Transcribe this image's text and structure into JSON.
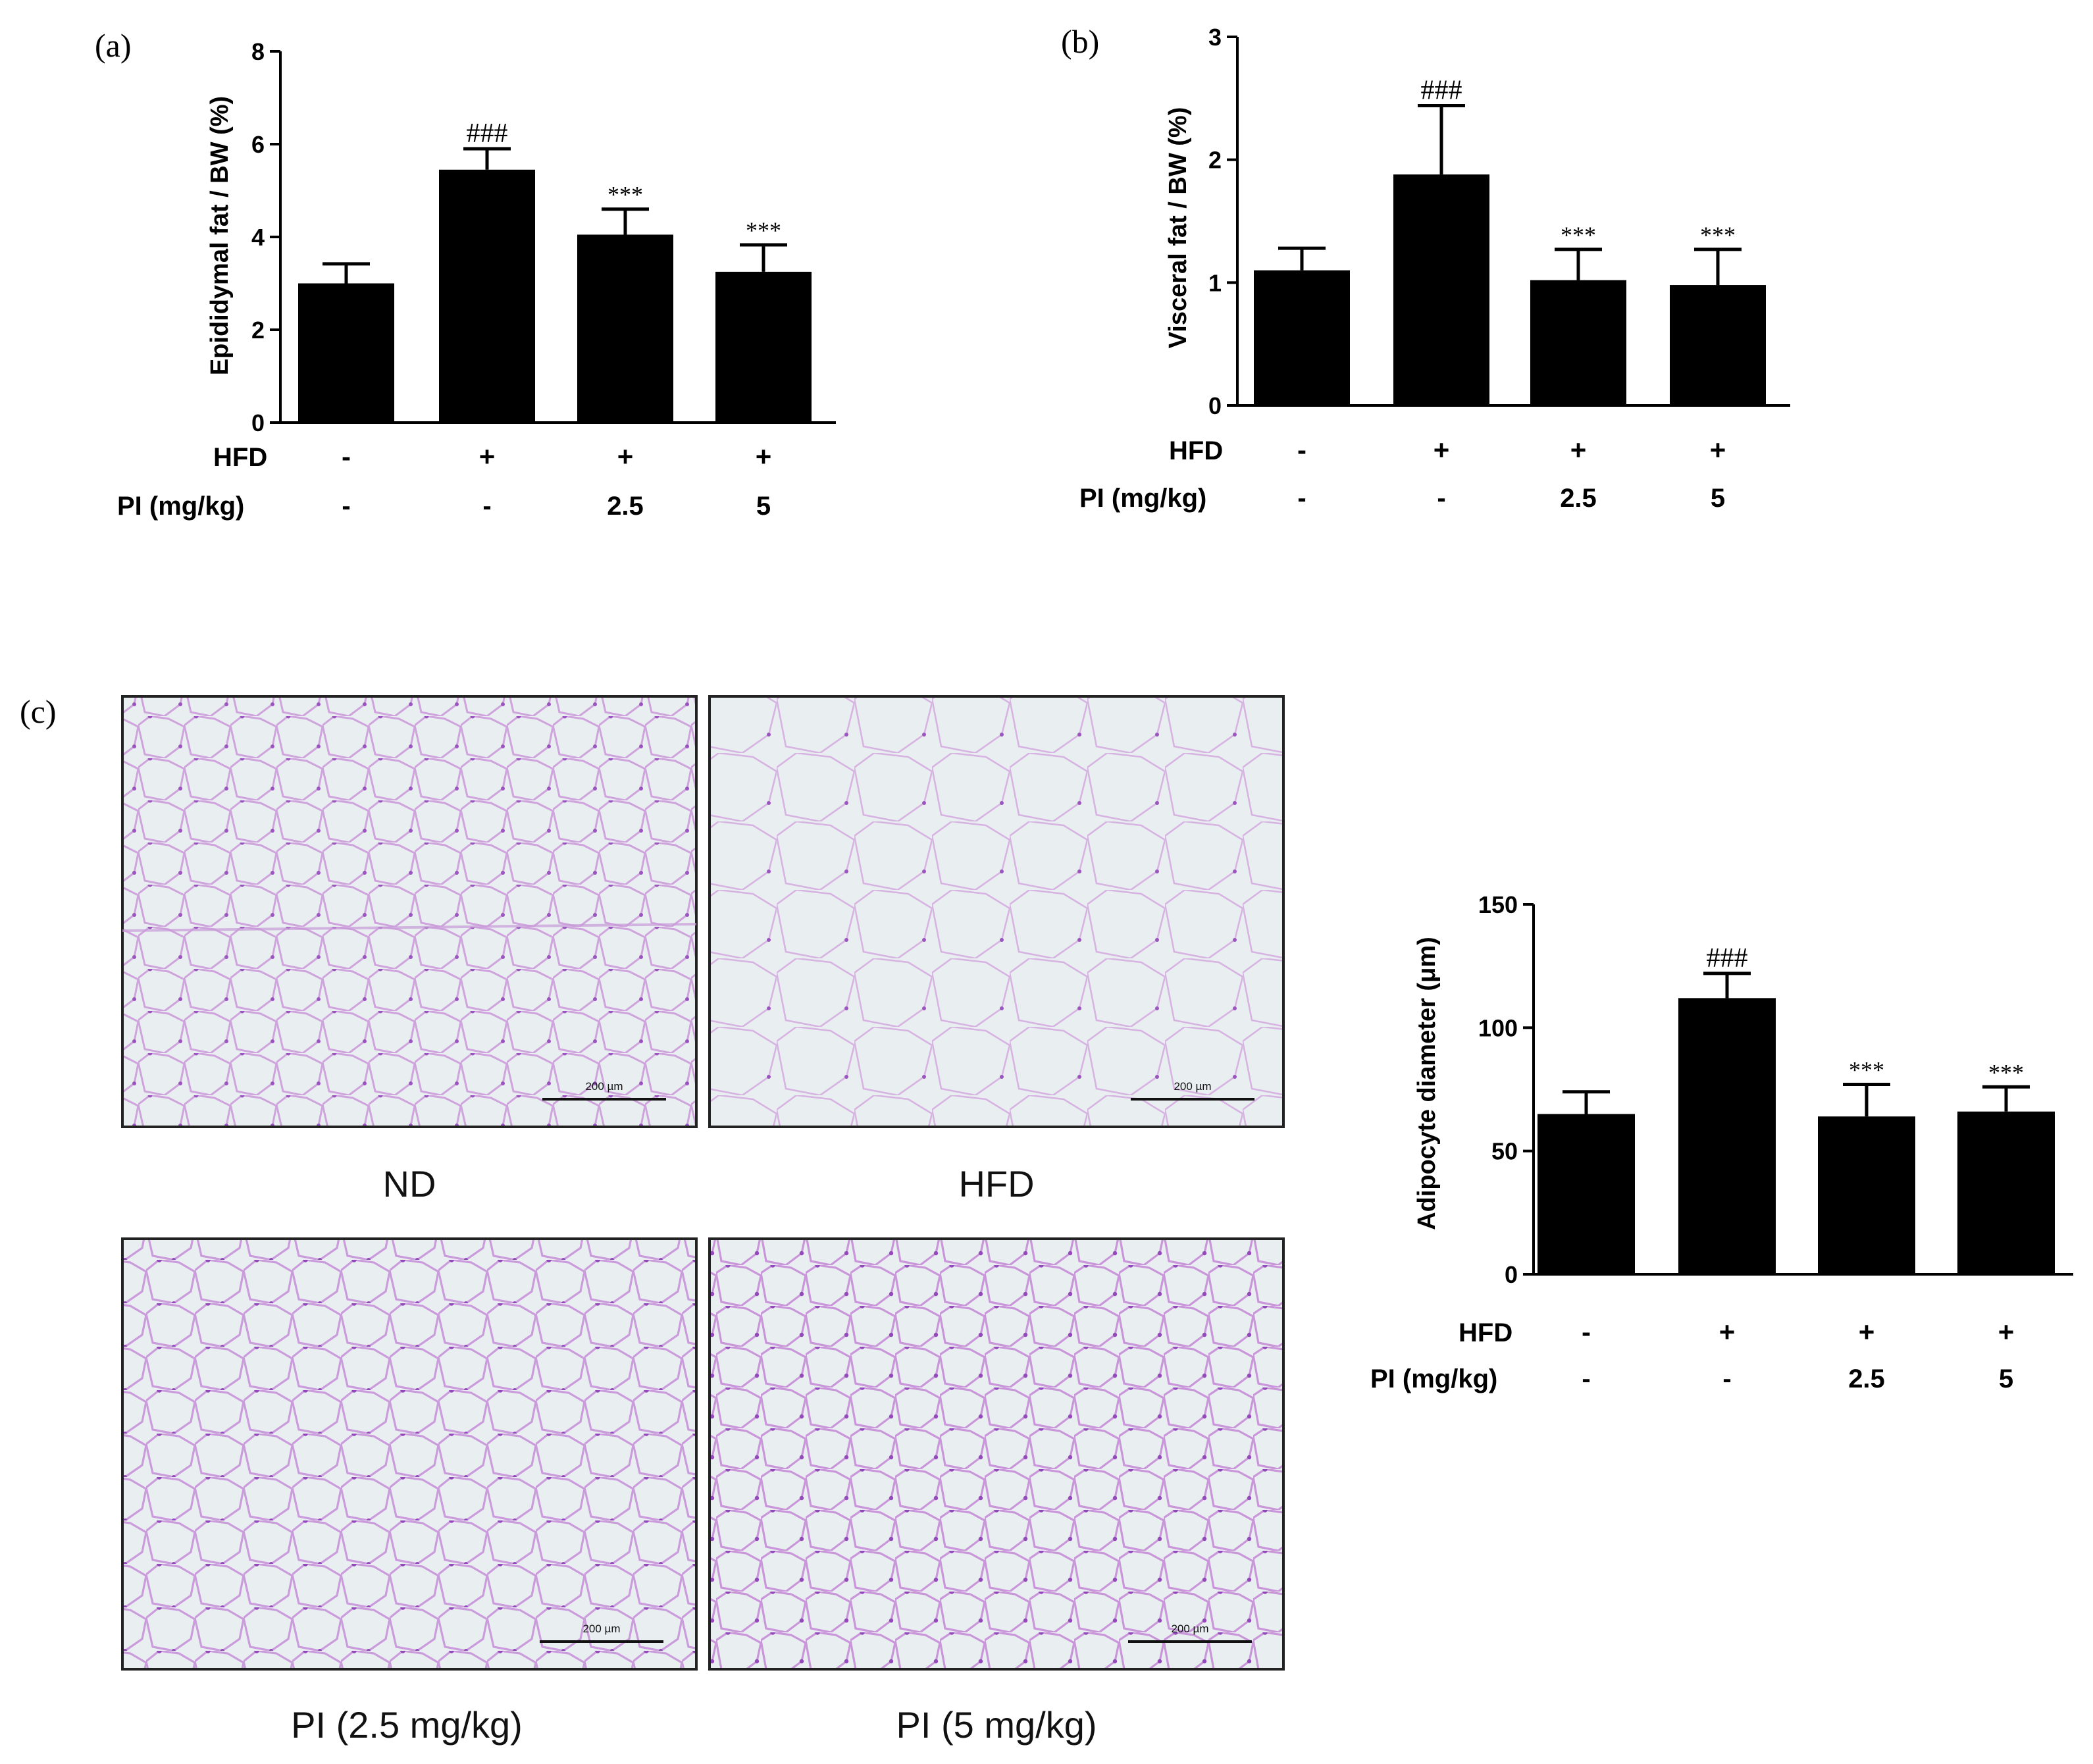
{
  "figure": {
    "panels": {
      "a": "(a)",
      "b": "(b)",
      "c": "(c)"
    },
    "row_labels": {
      "hfd": "HFD",
      "pi": "PI (mg/kg)"
    },
    "micrographs": [
      {
        "caption": "ND",
        "scale_label": "200 µm"
      },
      {
        "caption": "HFD",
        "scale_label": "200 µm"
      },
      {
        "caption": "PI (2.5 mg/kg)",
        "scale_label": "200 µm"
      },
      {
        "caption": "PI (5 mg/kg)",
        "scale_label": "200 µm"
      }
    ],
    "colors": {
      "bar": "#000000",
      "tissue_bg": "#e6ecef",
      "cell_wall": "#c89ad8",
      "nuclei": "#8a3fb0"
    }
  },
  "chart_data": [
    {
      "type": "bar",
      "panel": "(a)",
      "ylabel": "Epididymal fat / BW (%)",
      "ylim": [
        0,
        8
      ],
      "yticks": [
        "0",
        "2",
        "4",
        "6",
        "8"
      ],
      "categories": [
        "1",
        "2",
        "3",
        "4"
      ],
      "values": [
        3.0,
        5.45,
        4.05,
        3.25
      ],
      "errors": [
        0.42,
        0.45,
        0.55,
        0.58
      ],
      "annotations": [
        "",
        "###",
        "***",
        "***"
      ],
      "hfd": [
        "-",
        "+",
        "+",
        "+"
      ],
      "pi": [
        "-",
        "-",
        "2.5",
        "5"
      ]
    },
    {
      "type": "bar",
      "panel": "(b)",
      "ylabel": "Visceral fat / BW (%)",
      "ylim": [
        0,
        3
      ],
      "yticks": [
        "0",
        "1",
        "2",
        "3"
      ],
      "categories": [
        "1",
        "2",
        "3",
        "4"
      ],
      "values": [
        1.1,
        1.88,
        1.02,
        0.98
      ],
      "errors": [
        0.18,
        0.56,
        0.25,
        0.29
      ],
      "annotations": [
        "",
        "###",
        "***",
        "***"
      ],
      "hfd": [
        "-",
        "+",
        "+",
        "+"
      ],
      "pi": [
        "-",
        "-",
        "2.5",
        "5"
      ]
    },
    {
      "type": "bar",
      "panel": "(c)",
      "ylabel": "Adipocyte diameter (μm)",
      "ylim": [
        0,
        150
      ],
      "yticks": [
        "0",
        "50",
        "100",
        "150"
      ],
      "categories": [
        "1",
        "2",
        "3",
        "4"
      ],
      "values": [
        65,
        112,
        64,
        66
      ],
      "errors": [
        9,
        10,
        13,
        10
      ],
      "annotations": [
        "",
        "###",
        "***",
        "***"
      ],
      "hfd": [
        "-",
        "+",
        "+",
        "+"
      ],
      "pi": [
        "-",
        "-",
        "2.5",
        "5"
      ]
    }
  ]
}
